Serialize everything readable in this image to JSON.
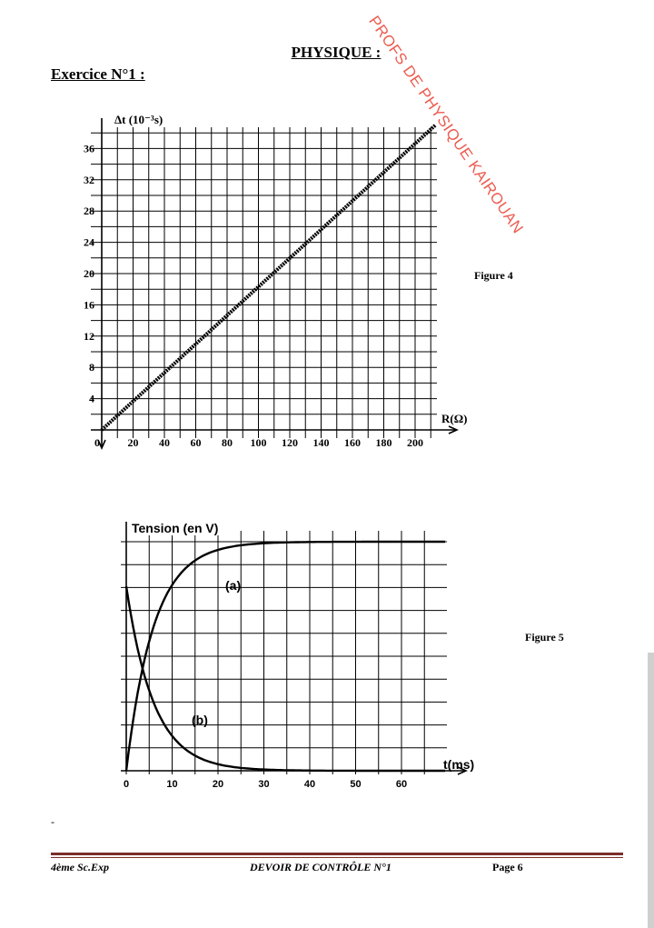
{
  "header": {
    "page_title": "PHYSIQUE :",
    "exercise_title": "Exercice N°1 :",
    "watermark": "PROFS DE PHYSIQUE KAIROUAN"
  },
  "figures": {
    "figure4_caption": "Figure  4",
    "figure5_caption": "Figure  5"
  },
  "chart_data": [
    {
      "type": "line",
      "y_label": "Δt (10⁻³s)",
      "x_label": "R(Ω)",
      "x_ticks": [
        "20",
        "40",
        "60",
        "80",
        "100",
        "120",
        "140",
        "160",
        "180",
        "200"
      ],
      "y_ticks": [
        "4",
        "8",
        "12",
        "16",
        "20",
        "24",
        "28",
        "32",
        "36"
      ],
      "origin_label": "0",
      "xlim": [
        0,
        200
      ],
      "ylim": [
        0,
        36
      ],
      "grid": true,
      "series": [
        {
          "x": [
            0,
            213
          ],
          "y": [
            0,
            39
          ]
        }
      ]
    },
    {
      "type": "line",
      "y_label": "Tension (en V)",
      "x_label": "t(ms)",
      "x_ticks": [
        "10",
        "20",
        "30",
        "40",
        "50",
        "60"
      ],
      "origin_label": "0",
      "xlim": [
        0,
        70
      ],
      "grid": true,
      "series": [
        {
          "name": "(a)",
          "tau_ms": 6,
          "rising": true
        },
        {
          "name": "(b)",
          "tau_ms": 6,
          "rising": false
        }
      ]
    }
  ],
  "misc": {
    "stray_mark": "-"
  },
  "footer": {
    "left": "4ème Sc.Exp",
    "center": "DEVOIR DE CONTRÔLE  N°1",
    "right": "Page 6"
  }
}
